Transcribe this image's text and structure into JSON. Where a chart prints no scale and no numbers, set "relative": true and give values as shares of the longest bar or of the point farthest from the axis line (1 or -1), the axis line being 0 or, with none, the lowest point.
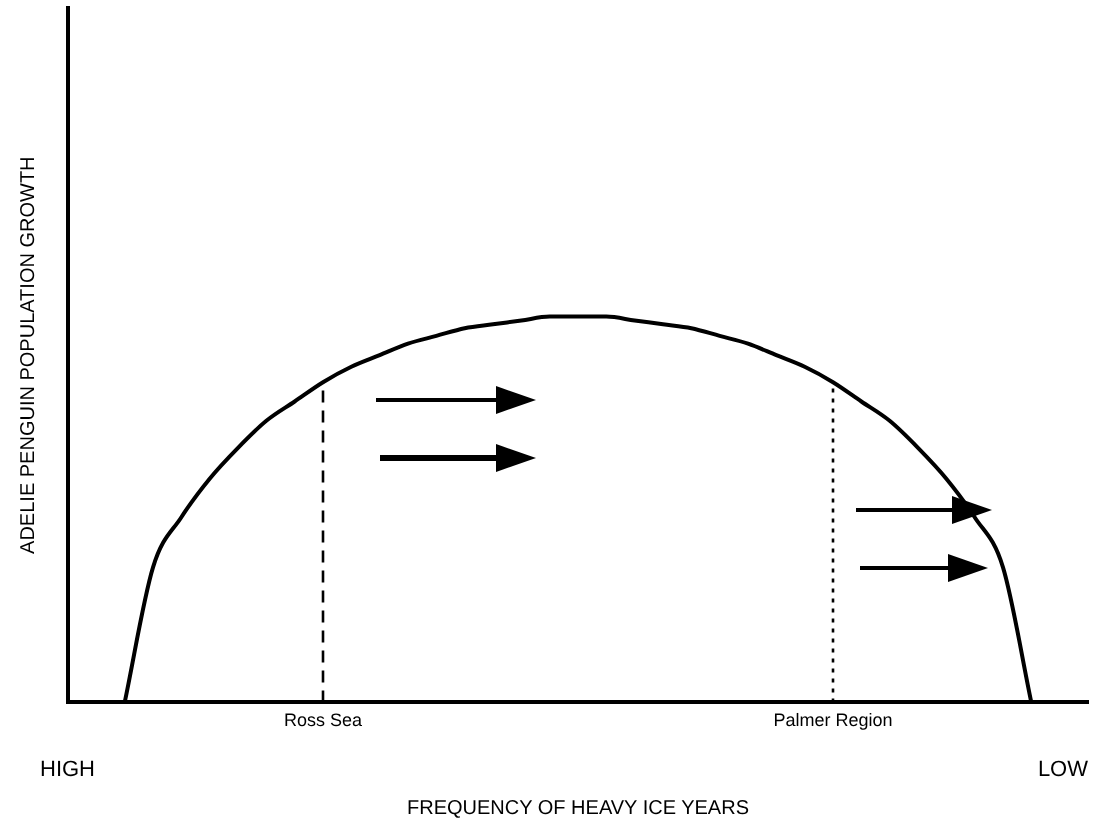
{
  "chart_data": {
    "type": "line",
    "relative": true,
    "xlabel": "FREQUENCY OF HEAVY ICE YEARS",
    "ylabel": "ADELIE PENGUIN POPULATION GROWTH",
    "categories": [
      null,
      null,
      null,
      null,
      null,
      null,
      null,
      null,
      null,
      "Ross Sea",
      null,
      null,
      null,
      null,
      null,
      null,
      null,
      null,
      null,
      null,
      null,
      null,
      null,
      null,
      null,
      null,
      null,
      "Palmer Region",
      null,
      null,
      null,
      null,
      null,
      null,
      null,
      null,
      null
    ],
    "series": [
      {
        "color": "#000000",
        "values": [
          null,
          null,
          0,
          0.35,
          0.48,
          0.58,
          0.66,
          0.73,
          0.78,
          0.83,
          0.87,
          0.9,
          0.93,
          0.95,
          0.97,
          0.98,
          0.99,
          1,
          1,
          1,
          0.99,
          0.98,
          0.97,
          0.95,
          0.93,
          0.9,
          0.87,
          0.83,
          0.78,
          0.73,
          0.66,
          0.58,
          0.48,
          0.35,
          0,
          null,
          null
        ]
      }
    ],
    "ref_lines": [
      {
        "axis": "x",
        "value": "Ross Sea",
        "line_style": "dashed",
        "color": "#000000"
      },
      {
        "axis": "x",
        "value": "Palmer Region",
        "line_style": "dotted",
        "color": "#000000"
      }
    ],
    "annotations": [
      "HIGH",
      "LOW"
    ],
    "marker": "none",
    "line_style": "solid",
    "grid": false,
    "legend": false
  }
}
